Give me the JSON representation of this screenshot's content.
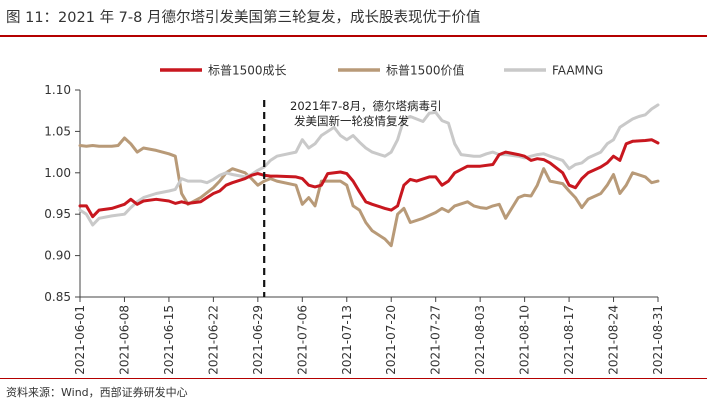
{
  "figure_title": "图 11：2021 年 7-8 月德尔塔引发美国第三轮复发，成长股表现优于价值",
  "source": "资料来源：Wind，西部证券研发中心",
  "chart_data": {
    "type": "line",
    "legend_position": "top",
    "grid": false,
    "ylim": [
      0.85,
      1.1
    ],
    "y_ticks": [
      "0.85",
      "0.90",
      "0.95",
      "1.00",
      "1.05",
      "1.10"
    ],
    "x_tick_labels": [
      "2021-06-01",
      "2021-06-08",
      "2021-06-15",
      "2021-06-22",
      "2021-06-29",
      "2021-07-06",
      "2021-07-13",
      "2021-07-20",
      "2021-07-27",
      "2021-08-03",
      "2021-08-10",
      "2021-08-17",
      "2021-08-24",
      "2021-08-31"
    ],
    "annotation": {
      "date": "2021-06-30",
      "lines": [
        "2021年7-8月，德尔塔病毒引",
        "发美国新一轮疫情复发"
      ]
    },
    "series": [
      {
        "name": "标普1500成长",
        "color": "#c8171f",
        "points": [
          [
            "2021-06-01",
            0.96
          ],
          [
            "2021-06-02",
            0.96
          ],
          [
            "2021-06-03",
            0.947
          ],
          [
            "2021-06-04",
            0.955
          ],
          [
            "2021-06-06",
            0.957
          ],
          [
            "2021-06-08",
            0.962
          ],
          [
            "2021-06-09",
            0.968
          ],
          [
            "2021-06-10",
            0.962
          ],
          [
            "2021-06-11",
            0.966
          ],
          [
            "2021-06-13",
            0.968
          ],
          [
            "2021-06-15",
            0.966
          ],
          [
            "2021-06-16",
            0.963
          ],
          [
            "2021-06-17",
            0.965
          ],
          [
            "2021-06-18",
            0.963
          ],
          [
            "2021-06-20",
            0.965
          ],
          [
            "2021-06-21",
            0.97
          ],
          [
            "2021-06-22",
            0.975
          ],
          [
            "2021-06-23",
            0.978
          ],
          [
            "2021-06-24",
            0.985
          ],
          [
            "2021-06-25",
            0.988
          ],
          [
            "2021-06-27",
            0.993
          ],
          [
            "2021-06-28",
            0.997
          ],
          [
            "2021-06-29",
            0.999
          ],
          [
            "2021-06-30",
            0.997
          ],
          [
            "2021-07-01",
            0.996
          ],
          [
            "2021-07-02",
            0.996
          ],
          [
            "2021-07-05",
            0.995
          ],
          [
            "2021-07-06",
            0.993
          ],
          [
            "2021-07-07",
            0.985
          ],
          [
            "2021-07-08",
            0.983
          ],
          [
            "2021-07-09",
            0.985
          ],
          [
            "2021-07-10",
            0.999
          ],
          [
            "2021-07-12",
            1.001
          ],
          [
            "2021-07-13",
            0.999
          ],
          [
            "2021-07-14",
            0.99
          ],
          [
            "2021-07-15",
            0.977
          ],
          [
            "2021-07-16",
            0.965
          ],
          [
            "2021-07-17",
            0.962
          ],
          [
            "2021-07-19",
            0.957
          ],
          [
            "2021-07-20",
            0.955
          ],
          [
            "2021-07-21",
            0.96
          ],
          [
            "2021-07-22",
            0.985
          ],
          [
            "2021-07-23",
            0.992
          ],
          [
            "2021-07-24",
            0.99
          ],
          [
            "2021-07-26",
            0.995
          ],
          [
            "2021-07-27",
            0.995
          ],
          [
            "2021-07-28",
            0.985
          ],
          [
            "2021-07-29",
            0.99
          ],
          [
            "2021-07-30",
            1.0
          ],
          [
            "2021-08-01",
            1.008
          ],
          [
            "2021-08-03",
            1.008
          ],
          [
            "2021-08-05",
            1.01
          ],
          [
            "2021-08-06",
            1.022
          ],
          [
            "2021-08-07",
            1.025
          ],
          [
            "2021-08-09",
            1.022
          ],
          [
            "2021-08-10",
            1.02
          ],
          [
            "2021-08-11",
            1.015
          ],
          [
            "2021-08-12",
            1.017
          ],
          [
            "2021-08-13",
            1.016
          ],
          [
            "2021-08-14",
            1.012
          ],
          [
            "2021-08-16",
            1.0
          ],
          [
            "2021-08-17",
            0.985
          ],
          [
            "2021-08-18",
            0.982
          ],
          [
            "2021-08-19",
            0.993
          ],
          [
            "2021-08-20",
            1.0
          ],
          [
            "2021-08-22",
            1.007
          ],
          [
            "2021-08-23",
            1.012
          ],
          [
            "2021-08-24",
            1.02
          ],
          [
            "2021-08-25",
            1.015
          ],
          [
            "2021-08-26",
            1.035
          ],
          [
            "2021-08-27",
            1.038
          ],
          [
            "2021-08-29",
            1.039
          ],
          [
            "2021-08-30",
            1.04
          ],
          [
            "2021-08-31",
            1.036
          ]
        ]
      },
      {
        "name": "标普1500价值",
        "color": "#b89a78",
        "points": [
          [
            "2021-06-01",
            1.033
          ],
          [
            "2021-06-02",
            1.032
          ],
          [
            "2021-06-03",
            1.033
          ],
          [
            "2021-06-04",
            1.032
          ],
          [
            "2021-06-06",
            1.032
          ],
          [
            "2021-06-07",
            1.033
          ],
          [
            "2021-06-08",
            1.042
          ],
          [
            "2021-06-09",
            1.035
          ],
          [
            "2021-06-10",
            1.025
          ],
          [
            "2021-06-11",
            1.03
          ],
          [
            "2021-06-13",
            1.027
          ],
          [
            "2021-06-15",
            1.023
          ],
          [
            "2021-06-16",
            1.02
          ],
          [
            "2021-06-17",
            0.975
          ],
          [
            "2021-06-18",
            0.962
          ],
          [
            "2021-06-20",
            0.97
          ],
          [
            "2021-06-22",
            0.982
          ],
          [
            "2021-06-23",
            0.99
          ],
          [
            "2021-06-24",
            1.0
          ],
          [
            "2021-06-25",
            1.005
          ],
          [
            "2021-06-27",
            1.0
          ],
          [
            "2021-06-28",
            0.993
          ],
          [
            "2021-06-29",
            0.985
          ],
          [
            "2021-06-30",
            0.99
          ],
          [
            "2021-07-01",
            0.993
          ],
          [
            "2021-07-02",
            0.99
          ],
          [
            "2021-07-05",
            0.985
          ],
          [
            "2021-07-06",
            0.962
          ],
          [
            "2021-07-07",
            0.97
          ],
          [
            "2021-07-08",
            0.96
          ],
          [
            "2021-07-09",
            0.99
          ],
          [
            "2021-07-11",
            0.99
          ],
          [
            "2021-07-12",
            0.99
          ],
          [
            "2021-07-13",
            0.985
          ],
          [
            "2021-07-14",
            0.96
          ],
          [
            "2021-07-15",
            0.955
          ],
          [
            "2021-07-16",
            0.94
          ],
          [
            "2021-07-17",
            0.93
          ],
          [
            "2021-07-19",
            0.92
          ],
          [
            "2021-07-20",
            0.912
          ],
          [
            "2021-07-21",
            0.95
          ],
          [
            "2021-07-22",
            0.957
          ],
          [
            "2021-07-23",
            0.94
          ],
          [
            "2021-07-25",
            0.945
          ],
          [
            "2021-07-27",
            0.952
          ],
          [
            "2021-07-28",
            0.957
          ],
          [
            "2021-07-29",
            0.953
          ],
          [
            "2021-07-30",
            0.96
          ],
          [
            "2021-08-01",
            0.965
          ],
          [
            "2021-08-02",
            0.96
          ],
          [
            "2021-08-03",
            0.958
          ],
          [
            "2021-08-04",
            0.957
          ],
          [
            "2021-08-05",
            0.96
          ],
          [
            "2021-08-06",
            0.962
          ],
          [
            "2021-08-07",
            0.945
          ],
          [
            "2021-08-09",
            0.97
          ],
          [
            "2021-08-10",
            0.973
          ],
          [
            "2021-08-11",
            0.972
          ],
          [
            "2021-08-12",
            0.985
          ],
          [
            "2021-08-13",
            1.005
          ],
          [
            "2021-08-14",
            0.99
          ],
          [
            "2021-08-16",
            0.987
          ],
          [
            "2021-08-17",
            0.978
          ],
          [
            "2021-08-18",
            0.97
          ],
          [
            "2021-08-19",
            0.958
          ],
          [
            "2021-08-20",
            0.968
          ],
          [
            "2021-08-22",
            0.975
          ],
          [
            "2021-08-23",
            0.985
          ],
          [
            "2021-08-24",
            0.998
          ],
          [
            "2021-08-25",
            0.975
          ],
          [
            "2021-08-26",
            0.985
          ],
          [
            "2021-08-27",
            1.0
          ],
          [
            "2021-08-29",
            0.995
          ],
          [
            "2021-08-30",
            0.988
          ],
          [
            "2021-08-31",
            0.99
          ]
        ]
      },
      {
        "name": "FAAMNG",
        "color": "#c9c9c9",
        "points": [
          [
            "2021-06-01",
            0.955
          ],
          [
            "2021-06-02",
            0.95
          ],
          [
            "2021-06-03",
            0.937
          ],
          [
            "2021-06-04",
            0.945
          ],
          [
            "2021-06-06",
            0.948
          ],
          [
            "2021-06-08",
            0.95
          ],
          [
            "2021-06-09",
            0.958
          ],
          [
            "2021-06-10",
            0.965
          ],
          [
            "2021-06-11",
            0.97
          ],
          [
            "2021-06-13",
            0.975
          ],
          [
            "2021-06-15",
            0.978
          ],
          [
            "2021-06-16",
            0.98
          ],
          [
            "2021-06-17",
            0.993
          ],
          [
            "2021-06-18",
            0.99
          ],
          [
            "2021-06-20",
            0.99
          ],
          [
            "2021-06-21",
            0.988
          ],
          [
            "2021-06-22",
            0.992
          ],
          [
            "2021-06-23",
            0.997
          ],
          [
            "2021-06-24",
            1.0
          ],
          [
            "2021-06-25",
            0.998
          ],
          [
            "2021-06-27",
            0.995
          ],
          [
            "2021-06-28",
            0.998
          ],
          [
            "2021-06-29",
            1.003
          ],
          [
            "2021-06-30",
            1.007
          ],
          [
            "2021-07-01",
            1.015
          ],
          [
            "2021-07-02",
            1.02
          ],
          [
            "2021-07-05",
            1.025
          ],
          [
            "2021-07-06",
            1.04
          ],
          [
            "2021-07-07",
            1.03
          ],
          [
            "2021-07-08",
            1.035
          ],
          [
            "2021-07-09",
            1.045
          ],
          [
            "2021-07-11",
            1.055
          ],
          [
            "2021-07-12",
            1.045
          ],
          [
            "2021-07-13",
            1.04
          ],
          [
            "2021-07-14",
            1.045
          ],
          [
            "2021-07-15",
            1.037
          ],
          [
            "2021-07-16",
            1.03
          ],
          [
            "2021-07-17",
            1.025
          ],
          [
            "2021-07-19",
            1.02
          ],
          [
            "2021-07-20",
            1.025
          ],
          [
            "2021-07-21",
            1.04
          ],
          [
            "2021-07-22",
            1.065
          ],
          [
            "2021-07-23",
            1.068
          ],
          [
            "2021-07-25",
            1.062
          ],
          [
            "2021-07-26",
            1.072
          ],
          [
            "2021-07-27",
            1.073
          ],
          [
            "2021-07-28",
            1.063
          ],
          [
            "2021-07-29",
            1.06
          ],
          [
            "2021-07-30",
            1.035
          ],
          [
            "2021-07-31",
            1.022
          ],
          [
            "2021-08-02",
            1.02
          ],
          [
            "2021-08-03",
            1.02
          ],
          [
            "2021-08-04",
            1.023
          ],
          [
            "2021-08-05",
            1.025
          ],
          [
            "2021-08-06",
            1.022
          ],
          [
            "2021-08-07",
            1.022
          ],
          [
            "2021-08-09",
            1.02
          ],
          [
            "2021-08-10",
            1.018
          ],
          [
            "2021-08-11",
            1.02
          ],
          [
            "2021-08-12",
            1.022
          ],
          [
            "2021-08-13",
            1.023
          ],
          [
            "2021-08-14",
            1.02
          ],
          [
            "2021-08-16",
            1.015
          ],
          [
            "2021-08-17",
            1.005
          ],
          [
            "2021-08-18",
            1.01
          ],
          [
            "2021-08-19",
            1.012
          ],
          [
            "2021-08-20",
            1.018
          ],
          [
            "2021-08-22",
            1.025
          ],
          [
            "2021-08-23",
            1.035
          ],
          [
            "2021-08-24",
            1.04
          ],
          [
            "2021-08-25",
            1.055
          ],
          [
            "2021-08-26",
            1.06
          ],
          [
            "2021-08-27",
            1.065
          ],
          [
            "2021-08-28",
            1.068
          ],
          [
            "2021-08-29",
            1.07
          ],
          [
            "2021-08-30",
            1.077
          ],
          [
            "2021-08-31",
            1.082
          ]
        ]
      }
    ]
  }
}
